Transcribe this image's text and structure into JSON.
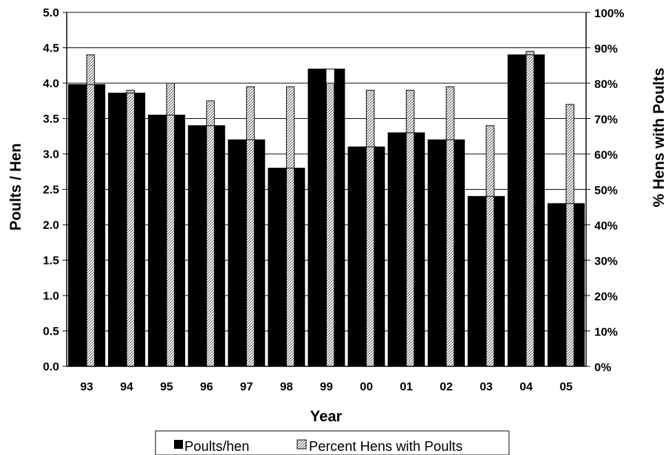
{
  "chart_data": {
    "type": "bar",
    "categories": [
      "93",
      "94",
      "95",
      "96",
      "97",
      "98",
      "99",
      "00",
      "01",
      "02",
      "03",
      "04",
      "05"
    ],
    "xlabel": "Year",
    "ylabel": "Poults / Hen",
    "y2label": "% Hens with Poults",
    "ylim": [
      0,
      5.0
    ],
    "y2lim": [
      0,
      100
    ],
    "yticks": [
      "0.0",
      "0.5",
      "1.0",
      "1.5",
      "2.0",
      "2.5",
      "3.0",
      "3.5",
      "4.0",
      "4.5",
      "5.0"
    ],
    "y2ticks": [
      "0%",
      "10%",
      "20%",
      "30%",
      "40%",
      "50%",
      "60%",
      "70%",
      "80%",
      "90%",
      "100%"
    ],
    "grid": true,
    "legend_position": "bottom",
    "series": [
      {
        "name": "Poults/hen",
        "axis": "left",
        "color": "#000000",
        "values": [
          3.98,
          3.86,
          3.55,
          3.4,
          3.2,
          2.8,
          4.2,
          3.1,
          3.3,
          3.2,
          2.4,
          4.4,
          2.3
        ]
      },
      {
        "name": "Percent Hens with Poults",
        "axis": "right",
        "color": "#b0b0b0",
        "pattern": "diagonal-hatch",
        "values": [
          88,
          78,
          80,
          75,
          79,
          79,
          80,
          78,
          78,
          79,
          68,
          89,
          74
        ]
      }
    ]
  }
}
